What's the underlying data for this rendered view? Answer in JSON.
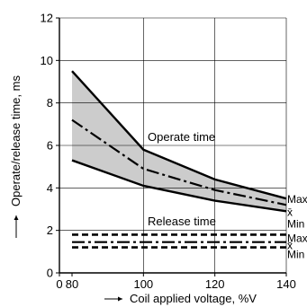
{
  "chart_data": {
    "type": "line",
    "xlabel": "Coil applied voltage, %V",
    "ylabel": "Operate/release time, ms",
    "xlim": [
      0,
      140
    ],
    "ylim": [
      0,
      12
    ],
    "x_ticks": [
      "0",
      "80",
      "100",
      "120",
      "140"
    ],
    "y_ticks": [
      "0",
      "2",
      "4",
      "6",
      "8",
      "10",
      "12"
    ],
    "x": [
      80,
      100,
      120,
      140
    ],
    "groups": [
      {
        "label": "Operate time",
        "shaded": true,
        "series": [
          {
            "name": "Max",
            "values": [
              9.5,
              5.8,
              4.4,
              3.5
            ]
          },
          {
            "name": "x̄",
            "values": [
              7.2,
              4.9,
              3.9,
              3.2
            ]
          },
          {
            "name": "Min",
            "values": [
              5.3,
              4.1,
              3.4,
              2.9
            ]
          }
        ]
      },
      {
        "label": "Release time",
        "shaded": false,
        "series": [
          {
            "name": "Max",
            "values": [
              1.8,
              1.8,
              1.8,
              1.8
            ]
          },
          {
            "name": "x̄",
            "values": [
              1.45,
              1.45,
              1.45,
              1.45
            ]
          },
          {
            "name": "Min",
            "values": [
              1.2,
              1.2,
              1.2,
              1.2
            ]
          }
        ]
      }
    ],
    "colors": {
      "band_fill": "#cccccc",
      "line": "#000000"
    }
  }
}
